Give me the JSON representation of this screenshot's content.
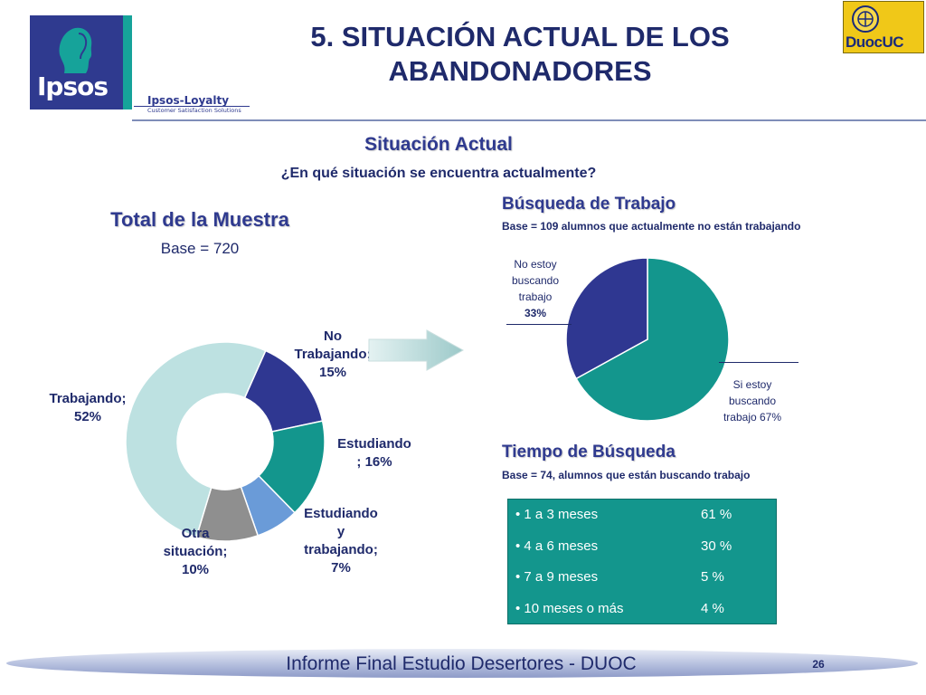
{
  "header": {
    "title_line1": "5. SITUACIÓN ACTUAL DE LOS",
    "title_line2": "ABANDONADORES",
    "ipsos_logo_text": "Ipsos",
    "loyalty_text": "Ipsos-Loyalty",
    "loyalty_sub": "Customer Satisfaction Solutions",
    "duoc_logo_text": "DuocUC"
  },
  "section": {
    "title": "Situación Actual",
    "question": "¿En qué situación se encuentra actualmente?"
  },
  "chart_data": [
    {
      "type": "pie",
      "variant": "donut",
      "title": "Total de la Muestra",
      "subtitle": "Base = 720",
      "slices": [
        {
          "label": "No Trabajando",
          "value": 15,
          "color": "#2f3791"
        },
        {
          "label": "Estudiando",
          "value": 16,
          "color": "#13968d"
        },
        {
          "label": "Estudiando y trabajando",
          "value": 7,
          "color": "#6a9bd8"
        },
        {
          "label": "Otra situación",
          "value": 10,
          "color": "#8f8f8f"
        },
        {
          "label": "Trabajando",
          "value": 52,
          "color": "#bde1e1"
        }
      ],
      "data_labels": [
        {
          "lines": [
            "No",
            "Trabajando;",
            "15%"
          ]
        },
        {
          "lines": [
            "Estudiando",
            "; 16%"
          ]
        },
        {
          "lines": [
            "Estudiando",
            "y",
            "trabajando;",
            "7%"
          ]
        },
        {
          "lines": [
            "Otra",
            "situación;",
            "10%"
          ]
        },
        {
          "lines": [
            "Trabajando;",
            "52%"
          ]
        }
      ]
    },
    {
      "type": "pie",
      "title": "Búsqueda de Trabajo",
      "subtitle": "Base = 109 alumnos que actualmente no están trabajando",
      "slices": [
        {
          "label": "Si estoy buscando trabajo",
          "value": 67,
          "color": "#13968d"
        },
        {
          "label": "No estoy buscando trabajo",
          "value": 33,
          "color": "#2f3791"
        }
      ],
      "data_labels": [
        {
          "lines": [
            "Si estoy",
            "buscando",
            "trabajo 67%"
          ]
        },
        {
          "lines": [
            "No estoy",
            "buscando",
            "trabajo",
            "33%"
          ]
        }
      ]
    },
    {
      "type": "table",
      "title": "Tiempo de Búsqueda",
      "subtitle": "Base = 74, alumnos que están buscando trabajo",
      "rows": [
        {
          "label": "• 1 a 3 meses",
          "value": "61 %"
        },
        {
          "label": "• 4 a 6 meses",
          "value": "30 %"
        },
        {
          "label": "• 7 a 9 meses",
          "value": "5 %"
        },
        {
          "label": "• 10 meses o más",
          "value": "4 %"
        }
      ]
    }
  ],
  "footer": {
    "text": "Informe Final Estudio Desertores - DUOC",
    "page": "26"
  }
}
